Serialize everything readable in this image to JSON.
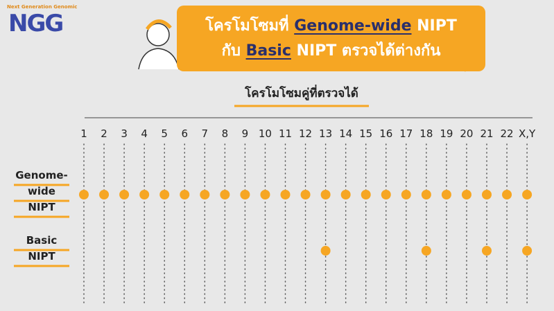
{
  "logo": {
    "tagline": "Next Generation Genomic",
    "letters": "NGG"
  },
  "title": {
    "line1": [
      "โครโมโซมที่ ",
      "Genome-wide",
      " NIPT"
    ],
    "line2": [
      "กับ ",
      "Basic",
      " NIPT ตรวจได้ต่างกัน"
    ]
  },
  "table": {
    "heading": "โครโมโซมคู่ที่ตรวจได้",
    "columns": [
      "1",
      "2",
      "3",
      "4",
      "5",
      "6",
      "7",
      "8",
      "9",
      "10",
      "11",
      "12",
      "13",
      "14",
      "15",
      "16",
      "17",
      "18",
      "19",
      "20",
      "21",
      "22",
      "X,Y"
    ],
    "rows": [
      {
        "label_lines": [
          "Genome-",
          "wide",
          "NIPT"
        ],
        "tested": [
          true,
          true,
          true,
          true,
          true,
          true,
          true,
          true,
          true,
          true,
          true,
          true,
          true,
          true,
          true,
          true,
          true,
          true,
          true,
          true,
          true,
          true,
          true
        ]
      },
      {
        "label_lines": [
          "Basic",
          "NIPT"
        ],
        "tested": [
          false,
          false,
          false,
          false,
          false,
          false,
          false,
          false,
          false,
          false,
          false,
          false,
          true,
          false,
          false,
          false,
          false,
          true,
          false,
          false,
          true,
          false,
          true
        ]
      }
    ]
  }
}
